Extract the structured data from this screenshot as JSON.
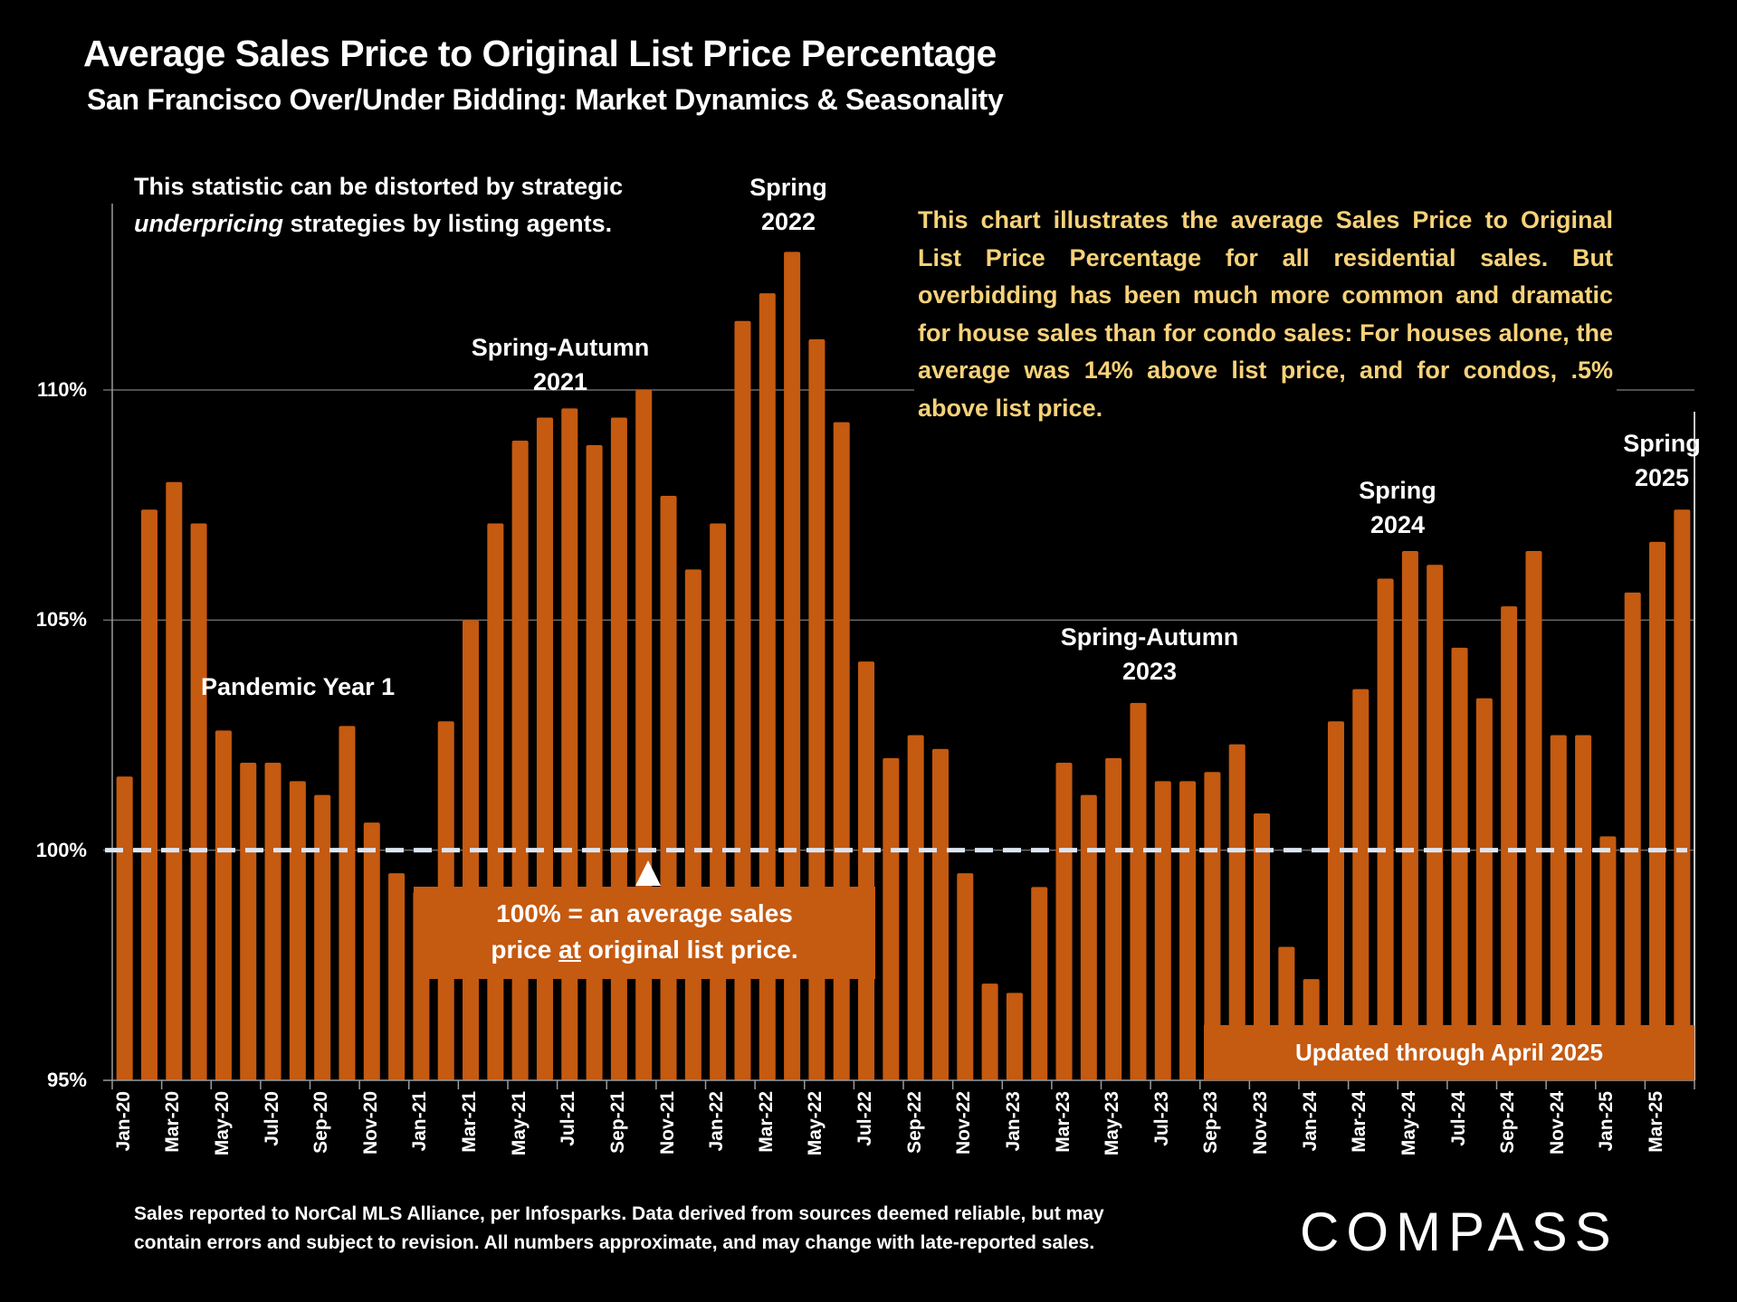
{
  "header": {
    "title": "Average Sales Price to Original List Price Percentage",
    "subtitle": "San Francisco Over/Under Bidding: Market Dynamics & Seasonality"
  },
  "notes": {
    "left_line1": "This statistic can be distorted by strategic",
    "left_line2_italic": "underpricing",
    "left_line2_rest": " strategies by listing agents.",
    "right": "This chart illustrates the average Sales Price to Original List Price Percentage for all residential sales. But overbidding has been much more common and dramatic for house sales than for condo sales:  For houses alone, the average was 14% above list price, and for condos, .5% above list price."
  },
  "annotations": {
    "pandemic": "Pandemic Year 1",
    "sa2021_l1": "Spring-Autumn",
    "sa2021_l2": "2021",
    "s2022_l1": "Spring",
    "s2022_l2": "2022",
    "sa2023_l1": "Spring-Autumn",
    "sa2023_l2": "2023",
    "s2024_l1": "Spring",
    "s2024_l2": "2024",
    "s2025_l1": "Spring",
    "s2025_l2": "2025"
  },
  "callout": {
    "line1": "100% = an average sales",
    "line2_pre": "price ",
    "line2_underline": "at",
    "line2_post": " original list price."
  },
  "updated_label": "Updated through April 2025",
  "footer": {
    "line1": "Sales reported to NorCal MLS Alliance, per Infosparks. Data derived from sources deemed reliable, but may",
    "line2": "contain errors and subject to revision. All numbers approximate, and may change with late-reported sales."
  },
  "logo": "COMPASS",
  "colors": {
    "bar": "#c55a11",
    "background": "#000000",
    "note_text": "#f7d27a",
    "reference_line": "#dde6f2"
  },
  "chart_data": {
    "type": "bar",
    "title": "Average Sales Price to Original List Price Percentage",
    "subtitle": "San Francisco Over/Under Bidding: Market Dynamics & Seasonality",
    "xlabel": "",
    "ylabel": "",
    "ylim": [
      95,
      113.5
    ],
    "yticks": [
      95,
      100,
      105,
      110
    ],
    "ytick_labels": [
      "95%",
      "100%",
      "105%",
      "110%"
    ],
    "grid": true,
    "reference_line": {
      "value": 100,
      "style": "dashed"
    },
    "categories": [
      "Jan-20",
      "Feb-20",
      "Mar-20",
      "Apr-20",
      "May-20",
      "Jun-20",
      "Jul-20",
      "Aug-20",
      "Sep-20",
      "Oct-20",
      "Nov-20",
      "Dec-20",
      "Jan-21",
      "Feb-21",
      "Mar-21",
      "Apr-21",
      "May-21",
      "Jun-21",
      "Jul-21",
      "Aug-21",
      "Sep-21",
      "Oct-21",
      "Nov-21",
      "Dec-21",
      "Jan-22",
      "Feb-22",
      "Mar-22",
      "Apr-22",
      "May-22",
      "Jun-22",
      "Jul-22",
      "Aug-22",
      "Sep-22",
      "Oct-22",
      "Nov-22",
      "Dec-22",
      "Jan-23",
      "Feb-23",
      "Mar-23",
      "Apr-23",
      "May-23",
      "Jun-23",
      "Jul-23",
      "Aug-23",
      "Sep-23",
      "Oct-23",
      "Nov-23",
      "Dec-23",
      "Jan-24",
      "Feb-24",
      "Mar-24",
      "Apr-24",
      "May-24",
      "Jun-24",
      "Jul-24",
      "Aug-24",
      "Sep-24",
      "Oct-24",
      "Nov-24",
      "Dec-24",
      "Jan-25",
      "Feb-25",
      "Mar-25",
      "Apr-25"
    ],
    "values": [
      101.6,
      107.4,
      108.0,
      107.1,
      102.6,
      101.9,
      101.9,
      101.5,
      101.2,
      102.7,
      100.6,
      99.5,
      99.1,
      102.8,
      105.0,
      107.1,
      108.9,
      109.4,
      109.6,
      108.8,
      109.4,
      110.0,
      107.7,
      106.1,
      107.1,
      111.5,
      112.1,
      113.0,
      111.1,
      109.3,
      104.1,
      102.0,
      102.5,
      102.2,
      99.5,
      97.1,
      96.9,
      99.2,
      101.9,
      101.2,
      102.0,
      103.2,
      101.5,
      101.5,
      101.7,
      102.3,
      100.8,
      97.9,
      97.2,
      102.8,
      103.5,
      105.9,
      106.5,
      106.2,
      104.4,
      103.3,
      105.3,
      106.5,
      102.5,
      102.5,
      100.3,
      105.6,
      106.7,
      107.4
    ],
    "x_tick_labels": [
      "Jan-20",
      "Mar-20",
      "May-20",
      "Jul-20",
      "Sep-20",
      "Nov-20",
      "Jan-21",
      "Mar-21",
      "May-21",
      "Jul-21",
      "Sep-21",
      "Nov-21",
      "Jan-22",
      "Mar-22",
      "May-22",
      "Jul-22",
      "Sep-22",
      "Nov-22",
      "Jan-23",
      "Mar-23",
      "May-23",
      "Jul-23",
      "Sep-23",
      "Nov-23",
      "Jan-24",
      "Mar-24",
      "May-24",
      "Jul-24",
      "Sep-24",
      "Nov-24",
      "Jan-25",
      "Mar-25"
    ],
    "legend": "none"
  }
}
